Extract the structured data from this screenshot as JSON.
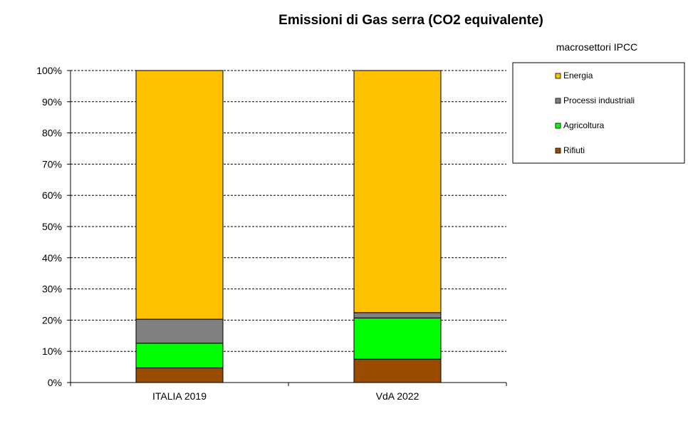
{
  "chart_data": {
    "type": "bar",
    "stacked": true,
    "title": "Emissioni  di Gas serra (CO2 equivalente)",
    "legend_title": "macrosettori IPCC",
    "legend_position": "top-right",
    "categories": [
      "ITALIA 2019",
      "VdA 2022"
    ],
    "ylim": [
      0,
      100
    ],
    "yticks": [
      "0%",
      "10%",
      "20%",
      "30%",
      "40%",
      "50%",
      "60%",
      "70%",
      "80%",
      "90%",
      "100%"
    ],
    "grid": true,
    "series": [
      {
        "name": "Rifiuti",
        "color": "#994C00",
        "values": [
          4.7,
          7.5
        ]
      },
      {
        "name": "Agricoltura",
        "color": "#00FF00",
        "values": [
          7.9,
          13.2
        ]
      },
      {
        "name": "Processi industriali",
        "color": "#808080",
        "values": [
          7.7,
          1.7
        ]
      },
      {
        "name": "Energia",
        "color": "#FFC000",
        "values": [
          79.7,
          77.6
        ]
      }
    ],
    "legend_order": [
      "Energia",
      "Processi industriali",
      "Agricoltura",
      "Rifiuti"
    ]
  }
}
